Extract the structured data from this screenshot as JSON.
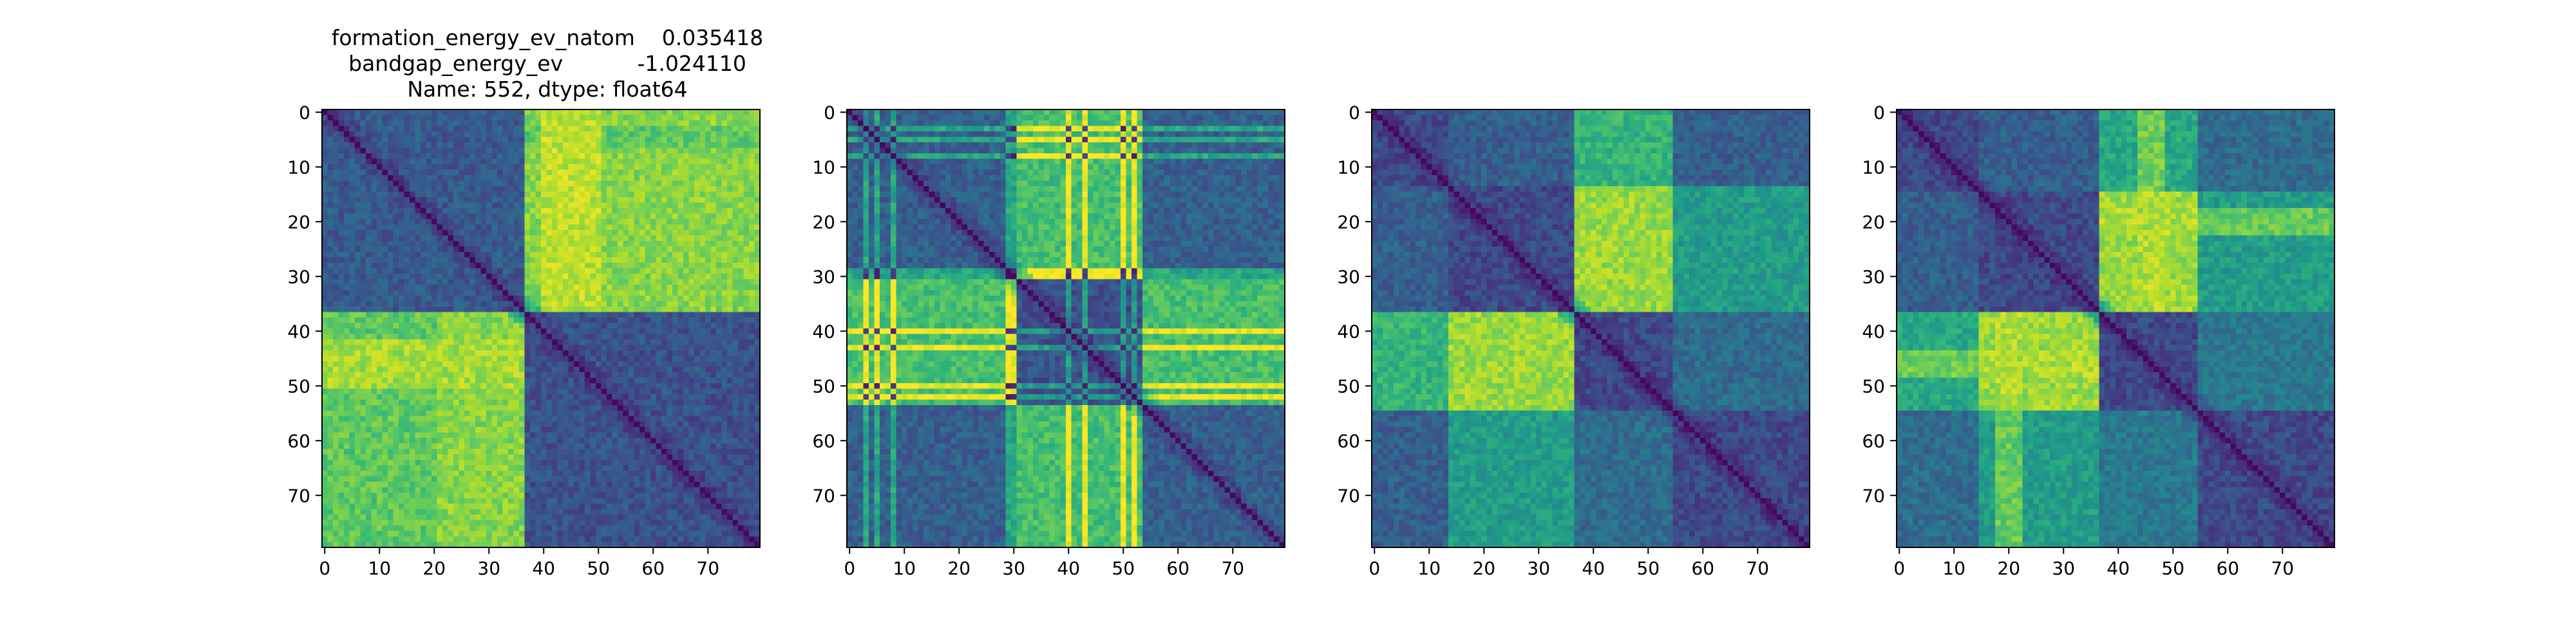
{
  "chart_data": [
    {
      "type": "heatmap",
      "title_lines": [
        "formation_energy_ev_natom    0.035418",
        "bandgap_energy_ev           -1.024110",
        "Name: 552, dtype: float64"
      ],
      "colormap": "viridis",
      "size": 80,
      "xticks": [
        0,
        10,
        20,
        30,
        40,
        50,
        60,
        70
      ],
      "yticks": [
        0,
        10,
        20,
        30,
        40,
        50,
        60,
        70
      ],
      "xlim": [
        0,
        79
      ],
      "ylim": [
        0,
        79
      ],
      "blocks": [
        0,
        37,
        80
      ],
      "block_levels": [
        [
          0.28,
          0.82
        ],
        [
          0.82,
          0.25
        ]
      ],
      "row_profile": [
        [
          3,
          6,
          0.7
        ],
        [
          42,
          50,
          0.9
        ]
      ],
      "col_profile": [
        [
          40,
          50,
          0.95
        ],
        [
          0,
          20,
          0.7
        ]
      ],
      "stripes": []
    },
    {
      "type": "heatmap",
      "title_lines": [],
      "colormap": "viridis",
      "size": 80,
      "xticks": [
        0,
        10,
        20,
        30,
        40,
        50,
        60,
        70
      ],
      "yticks": [
        0,
        10,
        20,
        30,
        40,
        50,
        60,
        70
      ],
      "xlim": [
        0,
        79
      ],
      "ylim": [
        0,
        79
      ],
      "blocks": [
        0,
        31,
        54,
        80
      ],
      "block_levels": [
        [
          0.3,
          0.7,
          0.3
        ],
        [
          0.7,
          0.25,
          0.7
        ],
        [
          0.3,
          0.7,
          0.3
        ]
      ],
      "row_profile": [],
      "col_profile": [],
      "stripes": [
        3,
        5,
        8,
        29,
        30,
        40,
        43,
        50,
        52
      ]
    },
    {
      "type": "heatmap",
      "title_lines": [],
      "colormap": "viridis",
      "size": 80,
      "xticks": [
        0,
        10,
        20,
        30,
        40,
        50,
        60,
        70
      ],
      "yticks": [
        0,
        10,
        20,
        30,
        40,
        50,
        60,
        70
      ],
      "xlim": [
        0,
        79
      ],
      "ylim": [
        0,
        79
      ],
      "blocks": [
        0,
        14,
        37,
        55,
        80
      ],
      "block_levels": [
        [
          0.22,
          0.3,
          0.65,
          0.3
        ],
        [
          0.3,
          0.22,
          0.85,
          0.55
        ],
        [
          0.65,
          0.85,
          0.22,
          0.35
        ],
        [
          0.3,
          0.55,
          0.35,
          0.22
        ]
      ],
      "row_profile": [],
      "col_profile": [],
      "stripes": []
    },
    {
      "type": "heatmap",
      "title_lines": [],
      "colormap": "viridis",
      "size": 80,
      "xticks": [
        0,
        10,
        20,
        30,
        40,
        50,
        60,
        70
      ],
      "yticks": [
        0,
        10,
        20,
        30,
        40,
        50,
        60,
        70
      ],
      "xlim": [
        0,
        79
      ],
      "ylim": [
        0,
        79
      ],
      "blocks": [
        0,
        15,
        37,
        55,
        80
      ],
      "block_levels": [
        [
          0.22,
          0.3,
          0.6,
          0.35
        ],
        [
          0.3,
          0.22,
          0.85,
          0.55
        ],
        [
          0.6,
          0.85,
          0.22,
          0.4
        ],
        [
          0.35,
          0.55,
          0.4,
          0.22
        ]
      ],
      "row_profile": [
        [
          18,
          22,
          0.9
        ],
        [
          44,
          48,
          0.9
        ]
      ],
      "col_profile": [
        [
          18,
          22,
          0.9
        ],
        [
          44,
          48,
          0.9
        ]
      ],
      "stripes": []
    }
  ]
}
